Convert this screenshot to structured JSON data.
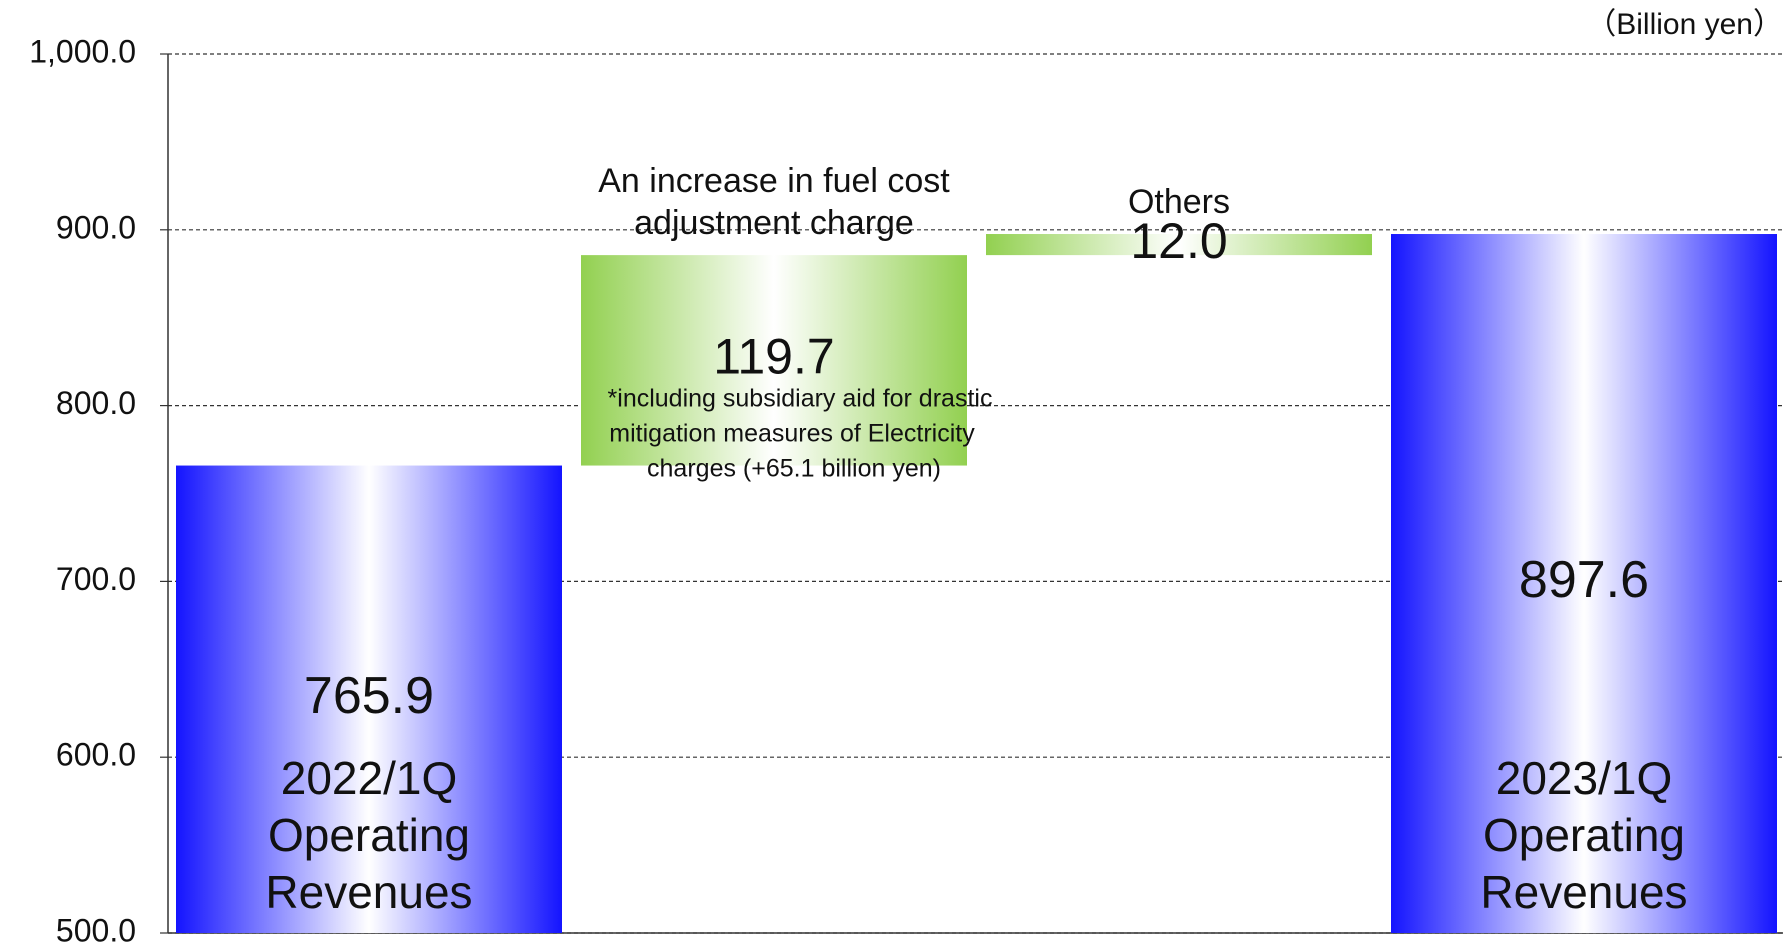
{
  "chart_data": {
    "type": "waterfall",
    "unit_label": "（Billion yen）",
    "categories": [
      [
        "2022/1Q",
        "Operating",
        "Revenues"
      ],
      [
        "An increase in fuel cost",
        "adjustment charge"
      ],
      [
        "Others"
      ],
      [
        "2023/1Q",
        "Operating",
        "Revenues"
      ]
    ],
    "measures": [
      "absolute",
      "relative",
      "relative",
      "total"
    ],
    "values": [
      765.9,
      119.7,
      12.0,
      897.6
    ],
    "value_labels": [
      "765.9",
      "119.7",
      "12.0",
      "897.6"
    ],
    "colors": {
      "total": "#1414ff",
      "increase": "#92d050"
    },
    "annotation": [
      "*including subsidiary aid for drastic",
      "mitigation measures of Electricity",
      "charges (+65.1 billion yen)"
    ],
    "ylim": [
      500,
      1000
    ],
    "yticks": [
      {
        "value": 500,
        "label": "500.0"
      },
      {
        "value": 600,
        "label": "600.0"
      },
      {
        "value": 700,
        "label": "700.0"
      },
      {
        "value": 800,
        "label": "800.0"
      },
      {
        "value": 900,
        "label": "900.0"
      },
      {
        "value": 1000,
        "label": "1,000.0"
      }
    ],
    "grid": true
  }
}
